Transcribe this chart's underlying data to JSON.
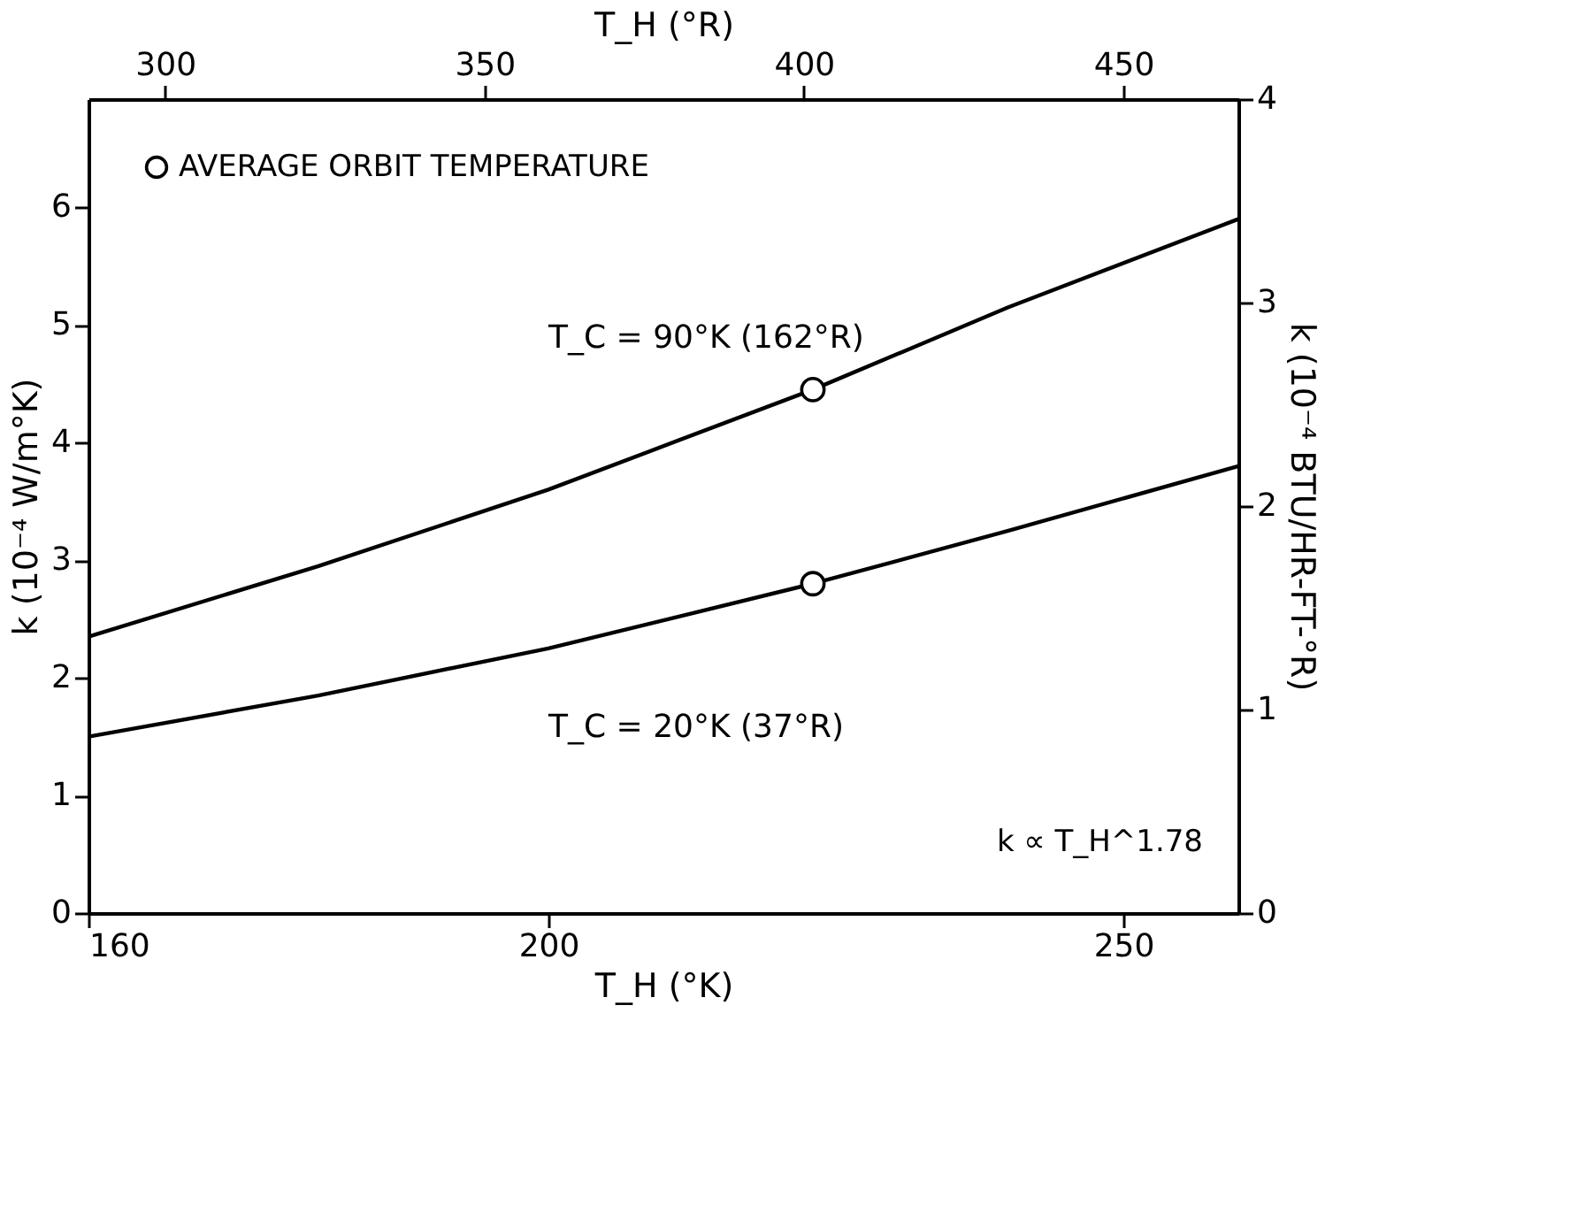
{
  "chart_data": {
    "type": "line",
    "xlabel": "T_H (°K)",
    "ylabel": "k (10⁻⁴ W/m°K)",
    "y2label": "k (10⁻⁴ BTU/HR-FT-°R)",
    "x2label": "T_H (°R)",
    "xlim": [
      160,
      260
    ],
    "xticks": [
      160,
      200,
      250
    ],
    "ylim": [
      0,
      6.92
    ],
    "yticks": [
      0,
      1,
      2,
      3,
      4,
      5,
      6
    ],
    "y2lim": [
      0,
      4
    ],
    "y2ticks": [
      0,
      1,
      2,
      3,
      4
    ],
    "x2lim": [
      288,
      468
    ],
    "x2ticks": [
      300,
      350,
      400,
      450
    ],
    "series": [
      {
        "name": "T_C = 90°K (162°R)",
        "color": "#000000",
        "x": [
          160,
          180,
          200,
          223,
          240,
          260
        ],
        "values": [
          2.35,
          2.95,
          3.6,
          4.45,
          5.15,
          5.9
        ],
        "marker": "none"
      },
      {
        "name": "T_C = 20°K (37°R)",
        "color": "#000000",
        "x": [
          160,
          180,
          200,
          223,
          240,
          260
        ],
        "values": [
          1.5,
          1.85,
          2.25,
          2.8,
          3.25,
          3.8
        ],
        "marker": "none"
      },
      {
        "type": "scatter",
        "name": "AVERAGE ORBIT TEMPERATURE",
        "color": "#000000",
        "x": [
          223,
          223
        ],
        "values": [
          4.45,
          2.8
        ],
        "marker": "circle"
      }
    ],
    "annotations": [
      "k ∝ T_H^1.78"
    ],
    "legend": "top left",
    "grid": false
  }
}
